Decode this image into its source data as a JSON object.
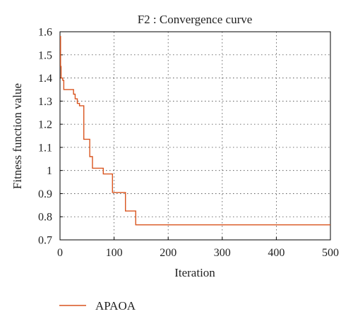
{
  "chart_data": {
    "type": "line",
    "title": "F2 : Convergence curve",
    "xlabel": "Iteration",
    "ylabel": "Fitness function value",
    "xlim": [
      0,
      500
    ],
    "ylim": [
      0.7,
      1.6
    ],
    "x_ticks": [
      0,
      100,
      200,
      300,
      400,
      500
    ],
    "y_ticks": [
      0.7,
      0.8,
      0.9,
      1,
      1.1,
      1.2,
      1.3,
      1.4,
      1.5,
      1.6
    ],
    "x_tick_labels": [
      "0",
      "100",
      "200",
      "300",
      "400",
      "500"
    ],
    "y_tick_labels": [
      "0.7",
      "0.8",
      "0.9",
      "1",
      "1.1",
      "1.2",
      "1.3",
      "1.4",
      "1.5",
      "1.6"
    ],
    "grid": "dotted",
    "legend_position": "bottom-left",
    "series": [
      {
        "name": "APAOA",
        "color": "#d9541e",
        "points": [
          [
            0,
            1.58
          ],
          [
            1,
            1.58
          ],
          [
            1,
            1.45
          ],
          [
            2,
            1.45
          ],
          [
            2,
            1.4
          ],
          [
            5,
            1.4
          ],
          [
            5,
            1.39
          ],
          [
            7,
            1.39
          ],
          [
            7,
            1.35
          ],
          [
            25,
            1.35
          ],
          [
            25,
            1.33
          ],
          [
            28,
            1.33
          ],
          [
            28,
            1.31
          ],
          [
            32,
            1.31
          ],
          [
            32,
            1.29
          ],
          [
            36,
            1.29
          ],
          [
            36,
            1.28
          ],
          [
            44,
            1.28
          ],
          [
            44,
            1.135
          ],
          [
            55,
            1.135
          ],
          [
            55,
            1.06
          ],
          [
            60,
            1.06
          ],
          [
            60,
            1.01
          ],
          [
            80,
            1.01
          ],
          [
            80,
            0.985
          ],
          [
            97,
            0.985
          ],
          [
            97,
            0.905
          ],
          [
            121,
            0.905
          ],
          [
            121,
            0.825
          ],
          [
            140,
            0.825
          ],
          [
            140,
            0.765
          ],
          [
            500,
            0.765
          ]
        ]
      }
    ]
  }
}
